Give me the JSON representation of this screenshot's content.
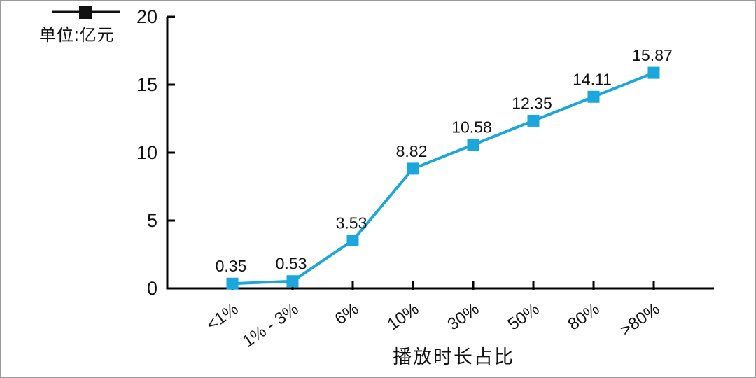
{
  "legend": {
    "label": "单位:亿元"
  },
  "chart_data": {
    "type": "line",
    "title": "",
    "xlabel": "播放时长占比",
    "ylabel": "",
    "categories": [
      "<1%",
      "1% - 3%",
      "6%",
      "10%",
      "30%",
      "50%",
      "80%",
      ">80%"
    ],
    "values": [
      0.35,
      0.53,
      3.53,
      8.82,
      10.58,
      12.35,
      14.11,
      15.87
    ],
    "value_labels": [
      "0.35",
      "0.53",
      "3.53",
      "8.82",
      "10.58",
      "12.35",
      "14.11",
      "15.87"
    ],
    "ylim": [
      0,
      20
    ],
    "yticks": [
      0,
      5,
      10,
      15,
      20
    ],
    "grid": false,
    "legend_position": "top-left",
    "colors": {
      "line": "#1BA6DC",
      "marker": "#1BA6DC",
      "axis": "#000000",
      "text": "#111111",
      "legend_marker": "#111111"
    }
  }
}
